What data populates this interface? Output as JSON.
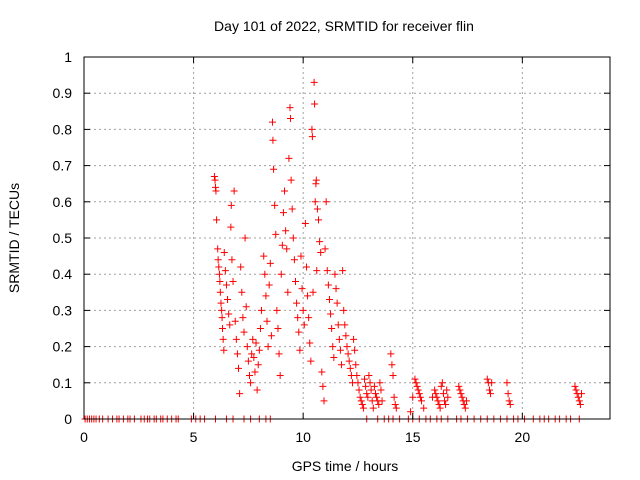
{
  "chart_data": {
    "type": "scatter",
    "title": "Day 101 of 2022, SRMTID for receiver flin",
    "xlabel": "GPS time / hours",
    "ylabel": "SRMTID / TECUs",
    "xlim": [
      0,
      24
    ],
    "ylim": [
      0,
      1
    ],
    "xticks": [
      0,
      5,
      10,
      15,
      20
    ],
    "yticks": [
      0,
      0.1,
      0.2,
      0.3,
      0.4,
      0.5,
      0.6,
      0.7,
      0.8,
      0.9,
      1
    ],
    "xtick_labels": [
      "0",
      "5",
      "10",
      "15",
      "20"
    ],
    "ytick_labels": [
      "0",
      "0.1",
      "0.2",
      "0.3",
      "0.4",
      "0.5",
      "0.6",
      "0.7",
      "0.8",
      "0.9",
      "1"
    ],
    "grid": true,
    "marker": "+",
    "color": "#ff0000",
    "series": [
      {
        "name": "SRMTID",
        "points": [
          [
            0.05,
            0
          ],
          [
            0.15,
            0
          ],
          [
            0.25,
            0
          ],
          [
            0.35,
            0
          ],
          [
            0.45,
            0
          ],
          [
            0.55,
            0
          ],
          [
            0.7,
            0
          ],
          [
            0.85,
            0
          ],
          [
            1.1,
            0
          ],
          [
            1.3,
            0
          ],
          [
            1.5,
            0
          ],
          [
            1.6,
            0
          ],
          [
            1.8,
            0
          ],
          [
            2.0,
            0
          ],
          [
            2.1,
            0
          ],
          [
            2.3,
            0
          ],
          [
            2.6,
            0
          ],
          [
            2.75,
            0
          ],
          [
            2.9,
            0
          ],
          [
            3.0,
            0
          ],
          [
            3.2,
            0
          ],
          [
            3.3,
            0
          ],
          [
            3.5,
            0
          ],
          [
            3.6,
            0
          ],
          [
            3.8,
            0
          ],
          [
            4.0,
            0
          ],
          [
            4.2,
            0
          ],
          [
            4.3,
            0
          ],
          [
            4.9,
            0
          ],
          [
            5.1,
            0
          ],
          [
            5.3,
            0
          ],
          [
            5.5,
            0
          ],
          [
            6.0,
            0
          ],
          [
            6.5,
            0
          ],
          [
            6.8,
            0
          ],
          [
            7.3,
            0
          ],
          [
            7.6,
            0
          ],
          [
            8.0,
            0
          ],
          [
            8.3,
            0
          ],
          [
            8.5,
            0
          ],
          [
            12.9,
            0
          ],
          [
            13.4,
            0
          ],
          [
            13.7,
            0
          ],
          [
            13.9,
            0
          ],
          [
            14.1,
            0
          ],
          [
            14.4,
            0
          ],
          [
            14.8,
            0
          ],
          [
            15.0,
            0
          ],
          [
            15.3,
            0
          ],
          [
            15.6,
            0
          ],
          [
            15.8,
            0
          ],
          [
            16.1,
            0
          ],
          [
            16.3,
            0
          ],
          [
            16.6,
            0
          ],
          [
            17.0,
            0
          ],
          [
            17.2,
            0
          ],
          [
            17.5,
            0
          ],
          [
            17.8,
            0
          ],
          [
            18.1,
            0
          ],
          [
            18.4,
            0
          ],
          [
            18.7,
            0
          ],
          [
            19.0,
            0
          ],
          [
            19.3,
            0
          ],
          [
            19.6,
            0
          ],
          [
            19.8,
            0
          ],
          [
            20.1,
            0
          ],
          [
            20.5,
            0
          ],
          [
            20.8,
            0
          ],
          [
            21.0,
            0
          ],
          [
            21.2,
            0
          ],
          [
            21.5,
            0
          ],
          [
            21.7,
            0
          ],
          [
            22.0,
            0
          ],
          [
            22.2,
            0
          ],
          [
            22.6,
            0
          ],
          [
            5.95,
            0.67
          ],
          [
            5.98,
            0.66
          ],
          [
            6.0,
            0.64
          ],
          [
            6.02,
            0.63
          ],
          [
            6.05,
            0.55
          ],
          [
            6.1,
            0.47
          ],
          [
            6.12,
            0.44
          ],
          [
            6.15,
            0.42
          ],
          [
            6.18,
            0.4
          ],
          [
            6.2,
            0.38
          ],
          [
            6.22,
            0.35
          ],
          [
            6.25,
            0.32
          ],
          [
            6.28,
            0.3
          ],
          [
            6.3,
            0.28
          ],
          [
            6.32,
            0.25
          ],
          [
            6.35,
            0.22
          ],
          [
            6.38,
            0.19
          ],
          [
            6.4,
            0.46
          ],
          [
            6.45,
            0.41
          ],
          [
            6.5,
            0.37
          ],
          [
            6.55,
            0.33
          ],
          [
            6.6,
            0.29
          ],
          [
            6.65,
            0.26
          ],
          [
            6.7,
            0.53
          ],
          [
            6.72,
            0.59
          ],
          [
            6.75,
            0.44
          ],
          [
            6.8,
            0.38
          ],
          [
            6.85,
            0.63
          ],
          [
            6.9,
            0.27
          ],
          [
            6.95,
            0.22
          ],
          [
            7.0,
            0.18
          ],
          [
            7.05,
            0.14
          ],
          [
            7.1,
            0.07
          ],
          [
            7.15,
            0.42
          ],
          [
            7.2,
            0.35
          ],
          [
            7.25,
            0.28
          ],
          [
            7.3,
            0.24
          ],
          [
            7.35,
            0.5
          ],
          [
            7.4,
            0.31
          ],
          [
            7.45,
            0.2
          ],
          [
            7.5,
            0.16
          ],
          [
            7.55,
            0.12
          ],
          [
            7.6,
            0.1
          ],
          [
            7.65,
            0.18
          ],
          [
            7.7,
            0.22
          ],
          [
            7.75,
            0.17
          ],
          [
            7.8,
            0.13
          ],
          [
            7.85,
            0.21
          ],
          [
            7.9,
            0.08
          ],
          [
            7.95,
            0.15
          ],
          [
            8.0,
            0.19
          ],
          [
            8.05,
            0.25
          ],
          [
            8.1,
            0.3
          ],
          [
            8.2,
            0.45
          ],
          [
            8.25,
            0.4
          ],
          [
            8.3,
            0.34
          ],
          [
            8.35,
            0.27
          ],
          [
            8.4,
            0.2
          ],
          [
            8.45,
            0.37
          ],
          [
            8.5,
            0.43
          ],
          [
            8.55,
            0.23
          ],
          [
            8.6,
            0.82
          ],
          [
            8.62,
            0.77
          ],
          [
            8.65,
            0.69
          ],
          [
            8.7,
            0.59
          ],
          [
            8.75,
            0.51
          ],
          [
            8.8,
            0.3
          ],
          [
            8.85,
            0.25
          ],
          [
            8.9,
            0.18
          ],
          [
            8.95,
            0.12
          ],
          [
            9.0,
            0.4
          ],
          [
            9.05,
            0.48
          ],
          [
            9.1,
            0.57
          ],
          [
            9.15,
            0.63
          ],
          [
            9.2,
            0.52
          ],
          [
            9.25,
            0.47
          ],
          [
            9.3,
            0.35
          ],
          [
            9.35,
            0.72
          ],
          [
            9.4,
            0.86
          ],
          [
            9.42,
            0.83
          ],
          [
            9.45,
            0.66
          ],
          [
            9.5,
            0.58
          ],
          [
            9.55,
            0.5
          ],
          [
            9.6,
            0.44
          ],
          [
            9.65,
            0.38
          ],
          [
            9.7,
            0.32
          ],
          [
            9.75,
            0.28
          ],
          [
            9.8,
            0.24
          ],
          [
            9.85,
            0.19
          ],
          [
            9.9,
            0.45
          ],
          [
            9.95,
            0.36
          ],
          [
            10.0,
            0.3
          ],
          [
            10.05,
            0.26
          ],
          [
            10.1,
            0.54
          ],
          [
            10.15,
            0.42
          ],
          [
            10.2,
            0.34
          ],
          [
            10.25,
            0.28
          ],
          [
            10.3,
            0.21
          ],
          [
            10.35,
            0.16
          ],
          [
            10.4,
            0.8
          ],
          [
            10.42,
            0.78
          ],
          [
            10.45,
            0.35
          ],
          [
            10.5,
            0.93
          ],
          [
            10.52,
            0.87
          ],
          [
            10.55,
            0.6
          ],
          [
            10.58,
            0.65
          ],
          [
            10.6,
            0.66
          ],
          [
            10.62,
            0.41
          ],
          [
            10.65,
            0.58
          ],
          [
            10.7,
            0.55
          ],
          [
            10.75,
            0.49
          ],
          [
            10.8,
            0.46
          ],
          [
            10.85,
            0.13
          ],
          [
            10.9,
            0.09
          ],
          [
            10.95,
            0.05
          ],
          [
            11.0,
            0.47
          ],
          [
            11.05,
            0.6
          ],
          [
            11.1,
            0.41
          ],
          [
            11.15,
            0.37
          ],
          [
            11.2,
            0.33
          ],
          [
            11.25,
            0.29
          ],
          [
            11.3,
            0.25
          ],
          [
            11.35,
            0.2
          ],
          [
            11.4,
            0.17
          ],
          [
            11.45,
            0.4
          ],
          [
            11.5,
            0.36
          ],
          [
            11.55,
            0.32
          ],
          [
            11.6,
            0.26
          ],
          [
            11.65,
            0.22
          ],
          [
            11.7,
            0.19
          ],
          [
            11.75,
            0.15
          ],
          [
            11.8,
            0.41
          ],
          [
            11.85,
            0.3
          ],
          [
            11.9,
            0.26
          ],
          [
            11.95,
            0.23
          ],
          [
            12.0,
            0.2
          ],
          [
            12.05,
            0.18
          ],
          [
            12.1,
            0.16
          ],
          [
            12.15,
            0.14
          ],
          [
            12.2,
            0.12
          ],
          [
            12.25,
            0.1
          ],
          [
            12.3,
            0.22
          ],
          [
            12.35,
            0.19
          ],
          [
            12.4,
            0.15
          ],
          [
            12.45,
            0.12
          ],
          [
            12.5,
            0.1
          ],
          [
            12.55,
            0.08
          ],
          [
            12.6,
            0.06
          ],
          [
            12.65,
            0.05
          ],
          [
            12.7,
            0.04
          ],
          [
            12.75,
            0.03
          ],
          [
            12.8,
            0.11
          ],
          [
            12.85,
            0.09
          ],
          [
            12.9,
            0.07
          ],
          [
            12.95,
            0.06
          ],
          [
            13.0,
            0.12
          ],
          [
            13.05,
            0.1
          ],
          [
            13.1,
            0.08
          ],
          [
            13.15,
            0.05
          ],
          [
            13.2,
            0.03
          ],
          [
            13.25,
            0.09
          ],
          [
            13.3,
            0.07
          ],
          [
            13.35,
            0.06
          ],
          [
            13.4,
            0.05
          ],
          [
            13.45,
            0.04
          ],
          [
            13.5,
            0.1
          ],
          [
            13.55,
            0.08
          ],
          [
            13.6,
            0.05
          ],
          [
            14.0,
            0.18
          ],
          [
            14.05,
            0.15
          ],
          [
            14.1,
            0.12
          ],
          [
            14.15,
            0.06
          ],
          [
            14.2,
            0.04
          ],
          [
            14.25,
            0.03
          ],
          [
            14.9,
            0.02
          ],
          [
            15.0,
            0.06
          ],
          [
            15.1,
            0.11
          ],
          [
            15.15,
            0.1
          ],
          [
            15.2,
            0.09
          ],
          [
            15.25,
            0.08
          ],
          [
            15.3,
            0.07
          ],
          [
            15.35,
            0.06
          ],
          [
            15.4,
            0.05
          ],
          [
            15.5,
            0.03
          ],
          [
            15.9,
            0.06
          ],
          [
            16.0,
            0.08
          ],
          [
            16.05,
            0.07
          ],
          [
            16.1,
            0.06
          ],
          [
            16.15,
            0.05
          ],
          [
            16.2,
            0.04
          ],
          [
            16.25,
            0.03
          ],
          [
            16.3,
            0.09
          ],
          [
            16.35,
            0.1
          ],
          [
            16.4,
            0.07
          ],
          [
            16.45,
            0.05
          ],
          [
            16.5,
            0.04
          ],
          [
            16.55,
            0.08
          ],
          [
            16.6,
            0.06
          ],
          [
            17.1,
            0.09
          ],
          [
            17.15,
            0.08
          ],
          [
            17.2,
            0.07
          ],
          [
            17.25,
            0.06
          ],
          [
            17.3,
            0.05
          ],
          [
            17.35,
            0.04
          ],
          [
            17.4,
            0.03
          ],
          [
            17.45,
            0.05
          ],
          [
            18.4,
            0.11
          ],
          [
            18.45,
            0.1
          ],
          [
            18.5,
            0.08
          ],
          [
            18.55,
            0.07
          ],
          [
            18.6,
            0.1
          ],
          [
            19.3,
            0.1
          ],
          [
            19.35,
            0.07
          ],
          [
            19.4,
            0.05
          ],
          [
            19.45,
            0.04
          ],
          [
            22.4,
            0.09
          ],
          [
            22.45,
            0.08
          ],
          [
            22.5,
            0.07
          ],
          [
            22.55,
            0.06
          ],
          [
            22.6,
            0.05
          ],
          [
            22.65,
            0.04
          ],
          [
            22.7,
            0.07
          ]
        ]
      }
    ]
  }
}
